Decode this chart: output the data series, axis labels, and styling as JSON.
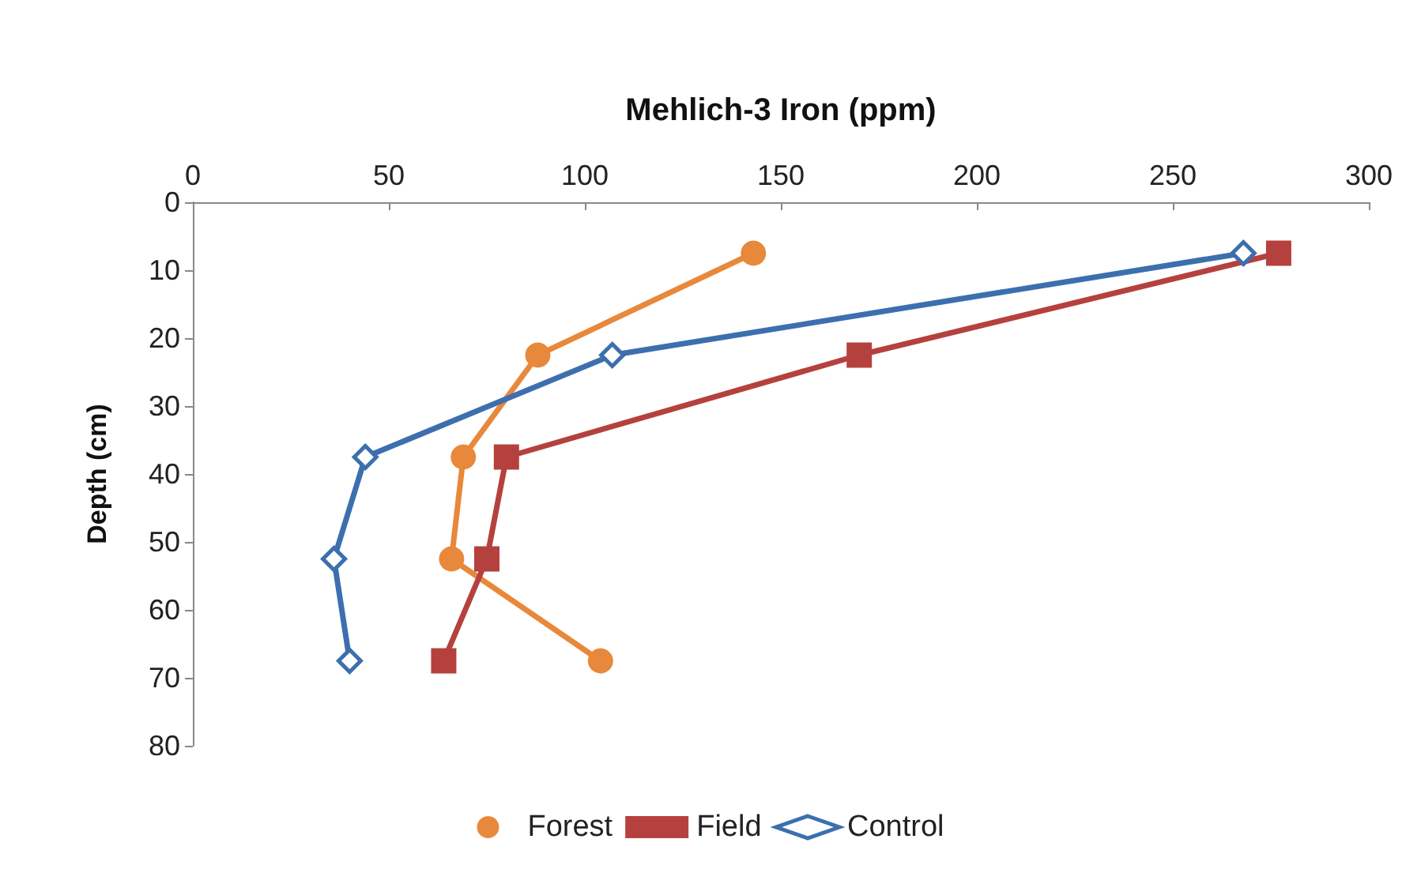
{
  "chart_data": {
    "type": "line",
    "xlabel": "Mehlich-3 Iron (ppm)",
    "ylabel": "Depth (cm)",
    "xlim": [
      0,
      300
    ],
    "xticks": [
      0,
      50,
      100,
      150,
      200,
      250,
      300
    ],
    "ylim": [
      80,
      0
    ],
    "yticks": [
      0,
      10,
      20,
      30,
      40,
      50,
      60,
      70,
      80
    ],
    "grid": false,
    "legend": "bottom",
    "line_style": "solid",
    "series": [
      {
        "name": "Forest",
        "color": "#e8883a",
        "marker": "circle",
        "x": [
          143,
          88,
          69,
          66,
          104
        ],
        "values": [
          7.5,
          22.5,
          37.5,
          52.5,
          67.5
        ]
      },
      {
        "name": "Field",
        "color": "#b5413e",
        "marker": "square",
        "x": [
          277,
          170,
          80,
          75,
          64
        ],
        "values": [
          7.5,
          22.5,
          37.5,
          52.5,
          67.5
        ]
      },
      {
        "name": "Control",
        "color": "#3d6fae",
        "marker": "diamond",
        "x": [
          268,
          107,
          44,
          36,
          40
        ],
        "values": [
          7.5,
          22.5,
          37.5,
          52.5,
          67.5
        ]
      }
    ]
  }
}
